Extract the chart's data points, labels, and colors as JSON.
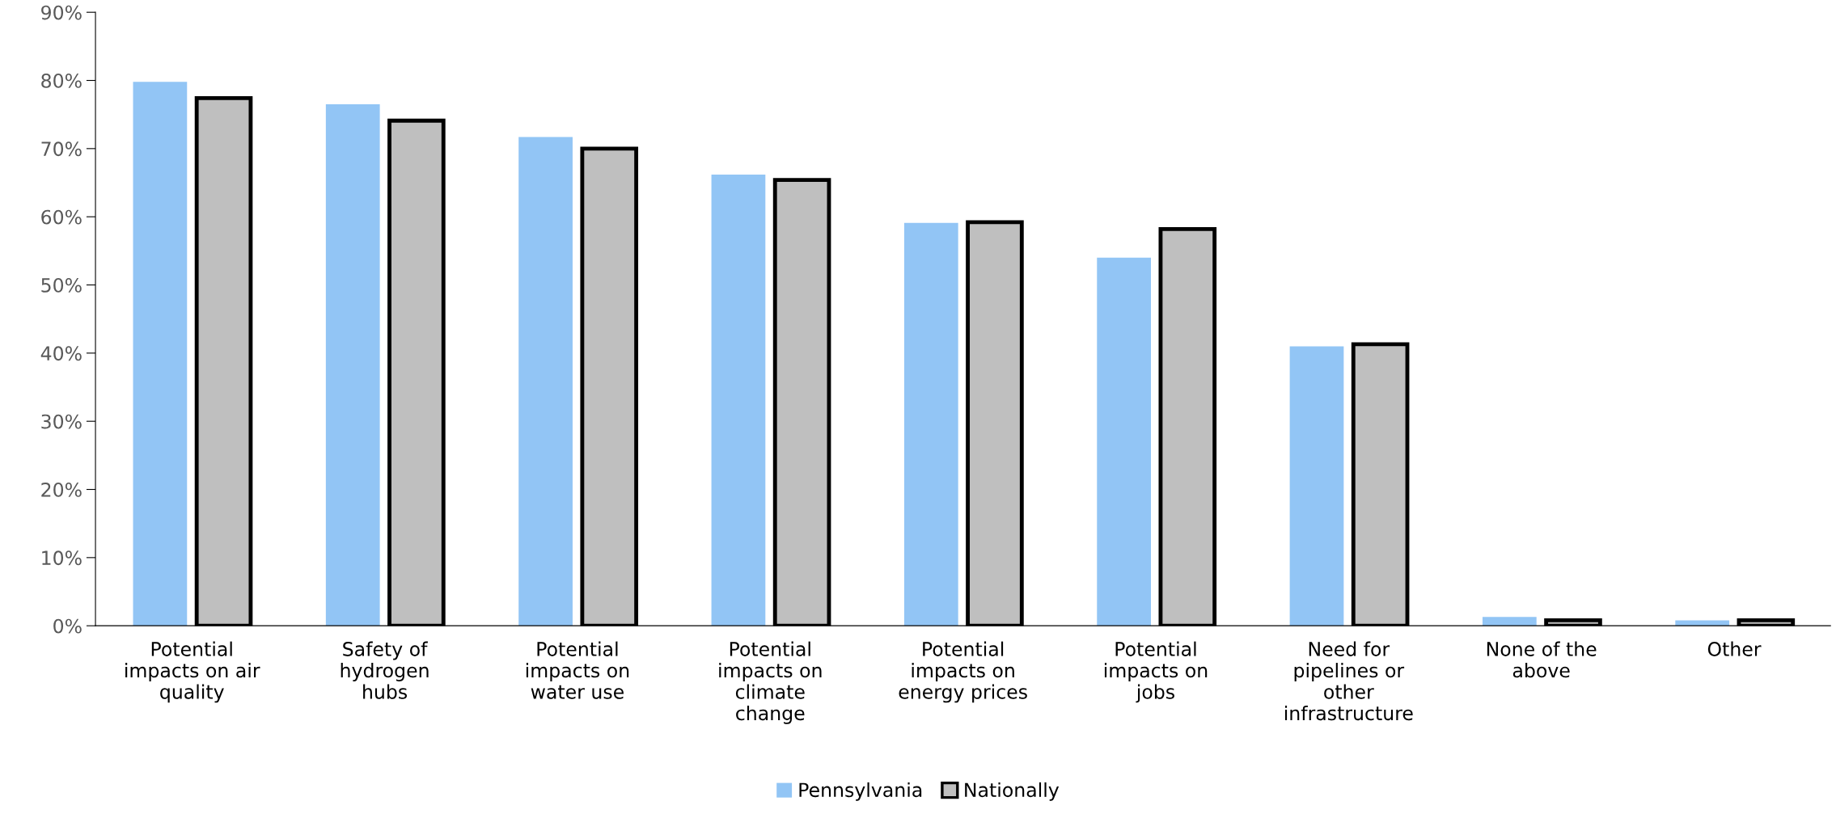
{
  "chart_data": {
    "type": "bar",
    "categories": [
      "Potential\nimpacts on air\nquality",
      "Safety of\nhydrogen\nhubs",
      "Potential\nimpacts on\nwater use",
      "Potential\nimpacts on\nclimate\nchange",
      "Potential\nimpacts on\nenergy prices",
      "Potential\nimpacts on\njobs",
      "Need for\npipelines or\nother\ninfrastructure",
      "None of the\nabove",
      "Other"
    ],
    "series": [
      {
        "name": "Pennsylvania",
        "color": "#92c5f5",
        "values": [
          79.8,
          76.5,
          71.7,
          66.2,
          59.1,
          54.0,
          41.0,
          1.3,
          0.8
        ]
      },
      {
        "name": "Nationally",
        "color": "#bfbfbf",
        "values": [
          77.4,
          74.1,
          70.0,
          65.4,
          59.2,
          58.2,
          41.3,
          0.8,
          0.8
        ]
      }
    ],
    "ylim": [
      0,
      90
    ],
    "yticks": [
      {
        "value": 0,
        "label": "0%"
      },
      {
        "value": 10,
        "label": "10%"
      },
      {
        "value": 20,
        "label": "20%"
      },
      {
        "value": 30,
        "label": "30%"
      },
      {
        "value": 40,
        "label": "40%"
      },
      {
        "value": 50,
        "label": "50%"
      },
      {
        "value": 60,
        "label": "60%"
      },
      {
        "value": 70,
        "label": "70%"
      },
      {
        "value": 80,
        "label": "80%"
      },
      {
        "value": 90,
        "label": "90%"
      }
    ],
    "grid": false,
    "legend": "bottom"
  }
}
